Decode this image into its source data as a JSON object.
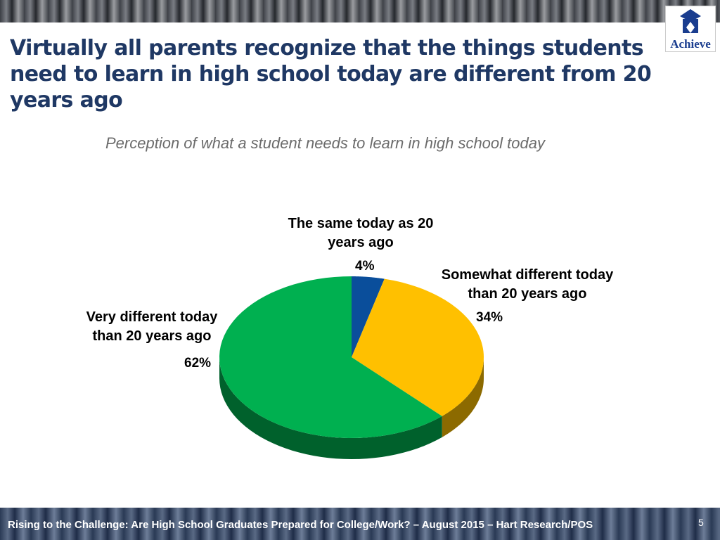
{
  "chart_data": {
    "type": "pie",
    "title": "Virtually all parents recognize that the things students need to learn in high school today are different from 20 years ago",
    "subtitle": "Perception of what a student needs to learn in high school today",
    "categories": [
      "The same today as 20 years ago",
      "Somewhat different today than 20 years ago",
      "Very different today than 20 years ago"
    ],
    "values": [
      4,
      34,
      62
    ],
    "value_labels": [
      "4%",
      "34%",
      "62%"
    ],
    "colors": [
      "#0a4e9b",
      "#ffc000",
      "#00b050"
    ]
  },
  "logo": "Achieve",
  "footer": "Rising to the Challenge:  Are High School Graduates Prepared for College/Work? – August 2015 – Hart Research/POS",
  "page_number": 5
}
